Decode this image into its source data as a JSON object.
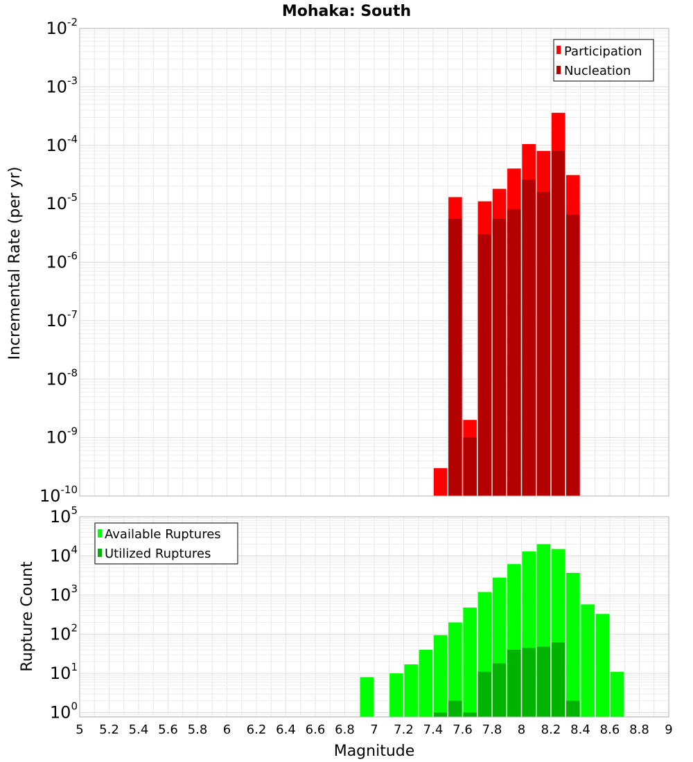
{
  "chart_data": [
    {
      "type": "bar",
      "title": "Mohaka: South",
      "xlabel": "",
      "ylabel": "Incremental Rate (per yr)",
      "yscale": "log",
      "xlim": [
        5,
        9
      ],
      "ylim": [
        1e-10,
        0.01
      ],
      "y_tick_exponents": [
        -10,
        -9,
        -8,
        -7,
        -6,
        -5,
        -4,
        -3,
        -2
      ],
      "grid": true,
      "legend_position": "top-right",
      "colors": {
        "Participation": "#ff0000",
        "Nucleation": "#b30000"
      },
      "series": [
        {
          "name": "Participation",
          "x": [
            7.45,
            7.55,
            7.65,
            7.75,
            7.85,
            7.95,
            8.05,
            8.15,
            8.25,
            8.35
          ],
          "values": [
            3e-10,
            1.3e-05,
            2e-09,
            1.1e-05,
            1.8e-05,
            4e-05,
            0.000105,
            8e-05,
            0.00036,
            3.1e-05
          ]
        },
        {
          "name": "Nucleation",
          "x": [
            7.55,
            7.65,
            7.75,
            7.85,
            7.95,
            8.05,
            8.15,
            8.25,
            8.35
          ],
          "values": [
            5.5e-06,
            1e-09,
            3e-06,
            5.5e-06,
            8e-06,
            2.6e-05,
            1.6e-05,
            8e-05,
            6.5e-06
          ]
        }
      ]
    },
    {
      "type": "bar",
      "title": "",
      "xlabel": "Magnitude",
      "ylabel": "Rupture Count",
      "yscale": "log",
      "xlim": [
        5,
        9
      ],
      "ylim": [
        0.77,
        100000.0
      ],
      "x_ticks": [
        "5",
        "5.2",
        "5.4",
        "5.6",
        "5.8",
        "6",
        "6.2",
        "6.4",
        "6.6",
        "6.8",
        "7",
        "7.2",
        "7.4",
        "7.6",
        "7.8",
        "8",
        "8.2",
        "8.4",
        "8.6",
        "8.8",
        "9"
      ],
      "y_tick_exponents": [
        0,
        1,
        2,
        3,
        4,
        5
      ],
      "grid": true,
      "legend_position": "top-left",
      "colors": {
        "Available Ruptures": "#00ff00",
        "Utilized Ruptures": "#00b300"
      },
      "series": [
        {
          "name": "Available Ruptures",
          "x": [
            6.95,
            7.15,
            7.25,
            7.35,
            7.45,
            7.55,
            7.65,
            7.75,
            7.85,
            7.95,
            8.05,
            8.15,
            8.25,
            8.35,
            8.45,
            8.55,
            8.65
          ],
          "values": [
            8,
            10,
            17,
            40,
            95,
            200,
            480,
            1200,
            2800,
            6200,
            13000,
            20000,
            15000,
            3700,
            580,
            330,
            11
          ]
        },
        {
          "name": "Utilized Ruptures",
          "x": [
            7.45,
            7.55,
            7.65,
            7.75,
            7.85,
            7.95,
            8.05,
            8.15,
            8.25,
            8.35
          ],
          "values": [
            1,
            2,
            1,
            11,
            18,
            40,
            45,
            48,
            62,
            2
          ]
        }
      ]
    }
  ]
}
